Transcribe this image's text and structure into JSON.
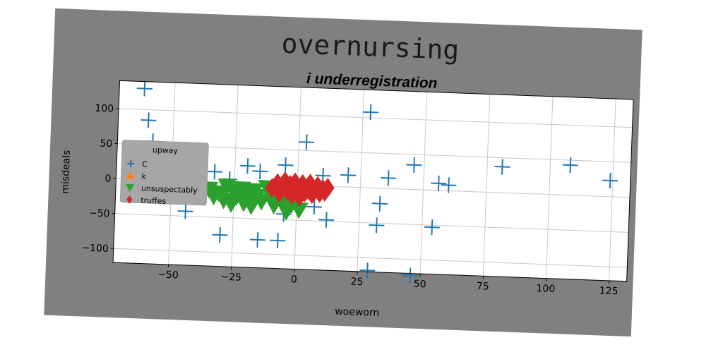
{
  "chart_data": {
    "type": "scatter",
    "title": "overnursing",
    "subtitle": "i underregistration",
    "xlabel": "woeworn",
    "ylabel": "misdeals",
    "xlim": [
      -72,
      132
    ],
    "ylim": [
      -120,
      140
    ],
    "xticks": [
      -50,
      -25,
      0,
      25,
      50,
      75,
      100,
      125
    ],
    "yticks": [
      -100,
      -50,
      0,
      50,
      100
    ],
    "xtick_labels": [
      "−50",
      "−25",
      "0",
      "25",
      "50",
      "75",
      "100",
      "125"
    ],
    "ytick_labels": [
      "−100",
      "−50",
      "0",
      "50",
      "100"
    ],
    "grid": true,
    "legend": {
      "title": "upway",
      "position": "center-left"
    },
    "colors": {
      "frame_background": "#808080",
      "plot_background": "#ffffff",
      "grid": "#c8c8c8"
    },
    "series": [
      {
        "name": "C",
        "marker": "plus",
        "color": "#1f77b4",
        "points": [
          [
            -62,
            130
          ],
          [
            -60,
            85
          ],
          [
            -58,
            55
          ],
          [
            -50,
            23
          ],
          [
            -45,
            45
          ],
          [
            -44,
            -43
          ],
          [
            -40,
            22
          ],
          [
            -33,
            15
          ],
          [
            -27,
            5
          ],
          [
            -30,
            -75
          ],
          [
            -20,
            25
          ],
          [
            -15,
            18
          ],
          [
            -15,
            -80
          ],
          [
            -7,
            -80
          ],
          [
            -5,
            28
          ],
          [
            -5,
            -42
          ],
          [
            3,
            62
          ],
          [
            7,
            -30
          ],
          [
            10,
            15
          ],
          [
            12,
            -48
          ],
          [
            20,
            17
          ],
          [
            28,
            108
          ],
          [
            32,
            -53
          ],
          [
            33,
            -22
          ],
          [
            36,
            15
          ],
          [
            29,
            -118
          ],
          [
            46,
            -123
          ],
          [
            46,
            35
          ],
          [
            54,
            -53
          ],
          [
            56,
            10
          ],
          [
            60,
            8
          ],
          [
            81,
            37
          ],
          [
            108,
            43
          ],
          [
            124,
            23
          ]
        ]
      },
      {
        "name": "k",
        "marker": "triangle-up",
        "color": "#ff7f0e",
        "points": [
          [
            -6,
            -8
          ],
          [
            -3,
            -5
          ],
          [
            0,
            -3
          ],
          [
            2,
            -10
          ]
        ]
      },
      {
        "name": "unsuspectably",
        "marker": "triangle-down",
        "color": "#2ca02c",
        "points": [
          [
            -35,
            -10
          ],
          [
            -33,
            -20
          ],
          [
            -31,
            -15
          ],
          [
            -29,
            -25
          ],
          [
            -28,
            -5
          ],
          [
            -26,
            -30
          ],
          [
            -25,
            -12
          ],
          [
            -24,
            -20
          ],
          [
            -22,
            -8
          ],
          [
            -21,
            -28
          ],
          [
            -20,
            -15
          ],
          [
            -19,
            -22
          ],
          [
            -18,
            -32
          ],
          [
            -17,
            -10
          ],
          [
            -16,
            -18
          ],
          [
            -14,
            -25
          ],
          [
            -12,
            -5
          ],
          [
            -10,
            -20
          ],
          [
            -9,
            -30
          ],
          [
            -7,
            -12
          ],
          [
            -6,
            -25
          ],
          [
            -4,
            -38
          ],
          [
            -3,
            -15
          ],
          [
            -2,
            -28
          ],
          [
            0,
            -20
          ],
          [
            1,
            -35
          ]
        ]
      },
      {
        "name": "truffes",
        "marker": "diamond",
        "color": "#d62728",
        "points": [
          [
            -10,
            -5
          ],
          [
            -8,
            2
          ],
          [
            -7,
            -12
          ],
          [
            -6,
            -3
          ],
          [
            -5,
            5
          ],
          [
            -4,
            -8
          ],
          [
            -3,
            0
          ],
          [
            -2,
            -14
          ],
          [
            -1,
            4
          ],
          [
            0,
            -6
          ],
          [
            1,
            -16
          ],
          [
            2,
            2
          ],
          [
            3,
            -10
          ],
          [
            4,
            -3
          ],
          [
            5,
            3
          ],
          [
            6,
            -12
          ],
          [
            7,
            -6
          ],
          [
            8,
            0
          ],
          [
            9,
            -10
          ],
          [
            10,
            -4
          ],
          [
            11,
            -8
          ],
          [
            12,
            -2
          ]
        ]
      }
    ]
  }
}
